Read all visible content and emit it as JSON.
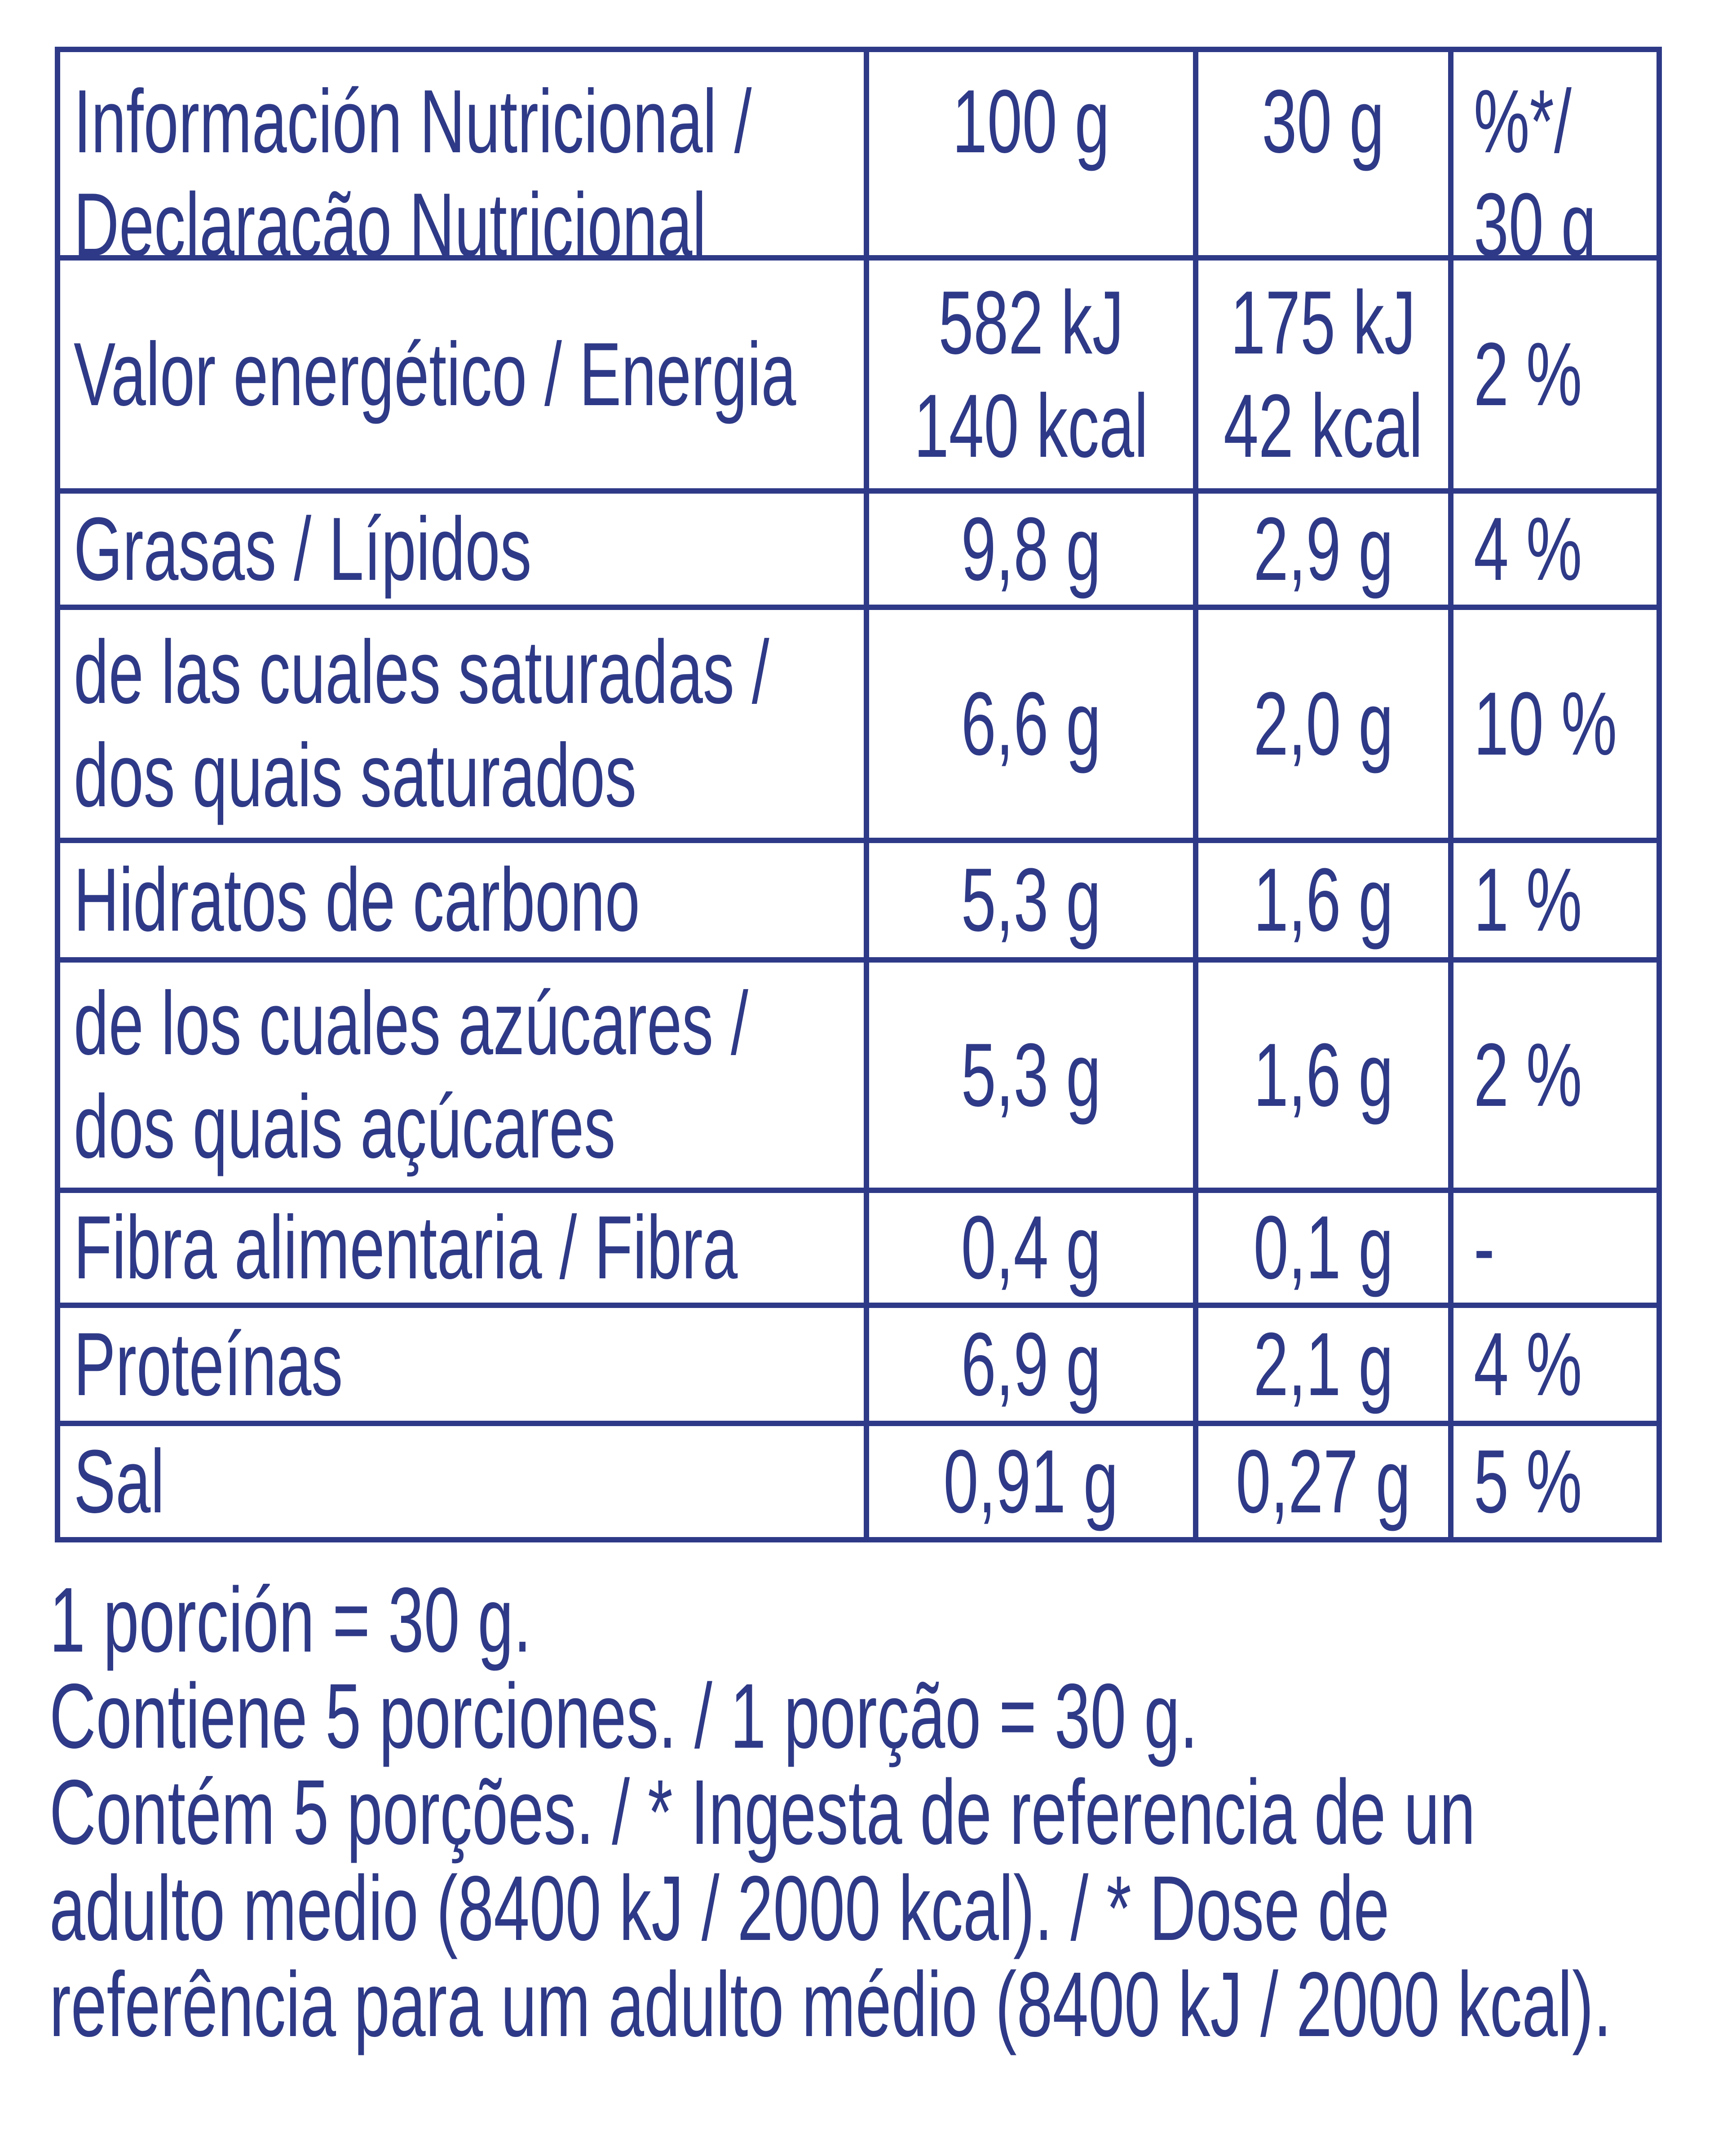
{
  "table": {
    "header": [
      [
        "Información Nutricional /",
        "Declaração Nutricional"
      ],
      [
        "100 g"
      ],
      [
        "30 g"
      ],
      [
        "%*/",
        "30 g"
      ]
    ],
    "rows": [
      [
        [
          "Valor energético / Energia"
        ],
        [
          "582 kJ",
          "140 kcal"
        ],
        [
          "175 kJ",
          "42 kcal"
        ],
        [
          "2 %"
        ]
      ],
      [
        [
          "Grasas / Lípidos"
        ],
        [
          "9,8 g"
        ],
        [
          "2,9 g"
        ],
        [
          "4 %"
        ]
      ],
      [
        [
          "de las cuales saturadas /",
          "dos quais saturados"
        ],
        [
          "6,6 g"
        ],
        [
          "2,0 g"
        ],
        [
          "10 %"
        ]
      ],
      [
        [
          "Hidratos de carbono"
        ],
        [
          "5,3 g"
        ],
        [
          "1,6 g"
        ],
        [
          "1 %"
        ]
      ],
      [
        [
          "de los cuales azúcares /",
          "dos quais açúcares"
        ],
        [
          "5,3 g"
        ],
        [
          "1,6 g"
        ],
        [
          "2 %"
        ]
      ],
      [
        [
          "Fibra alimentaria / Fibra"
        ],
        [
          "0,4 g"
        ],
        [
          "0,1 g"
        ],
        [
          "-"
        ]
      ],
      [
        [
          "Proteínas"
        ],
        [
          "6,9 g"
        ],
        [
          "2,1 g"
        ],
        [
          "4 %"
        ]
      ],
      [
        [
          "Sal"
        ],
        [
          "0,91 g"
        ],
        [
          "0,27 g"
        ],
        [
          "5 %"
        ]
      ]
    ]
  },
  "footer": {
    "lines": [
      "1 porción = 30 g.",
      "Contiene 5 porciones. / 1 porção = 30 g.",
      "Contém 5 porções. / * Ingesta de referencia de un",
      "adulto medio (8400 kJ / 2000 kcal). / * Dose de",
      "referência para um adulto médio (8400 kJ / 2000 kcal)."
    ]
  }
}
